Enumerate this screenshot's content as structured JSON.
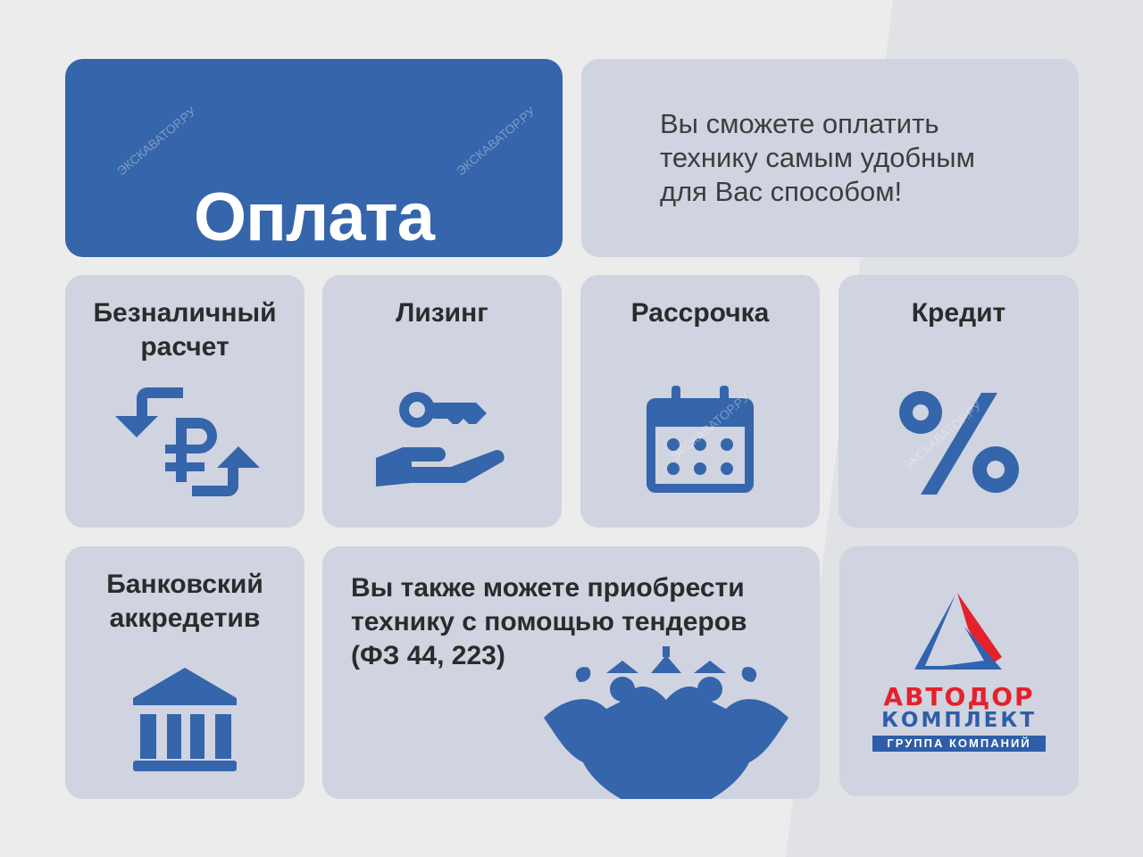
{
  "header": {
    "title": "Оплата",
    "intro": "Вы сможете оплатить технику самым удобным для Вас способом!"
  },
  "methods": [
    {
      "label": "Безналичный расчет",
      "icon": "ruble-exchange-icon"
    },
    {
      "label": "Лизинг",
      "icon": "hand-key-icon"
    },
    {
      "label": "Рассрочка",
      "icon": "calendar-icon"
    },
    {
      "label": "Кредит",
      "icon": "percent-icon"
    },
    {
      "label": "Банковский аккредетив",
      "icon": "bank-icon"
    }
  ],
  "tender": {
    "text": "Вы также можете приобрести технику с помощью тендеров (ФЗ 44, 223)",
    "icon": "double-headed-eagle-icon"
  },
  "logo": {
    "line1": "АВТОДОР",
    "line2": "КОМПЛЕКТ",
    "line3": "ГРУППА КОМПАНИЙ"
  },
  "watermark": "ЭКСКАВАТОР.РУ",
  "colors": {
    "brand_blue": "#3565aa",
    "card": "#d0d3e0",
    "logo_red": "#e3222b",
    "background": "#ececec"
  }
}
